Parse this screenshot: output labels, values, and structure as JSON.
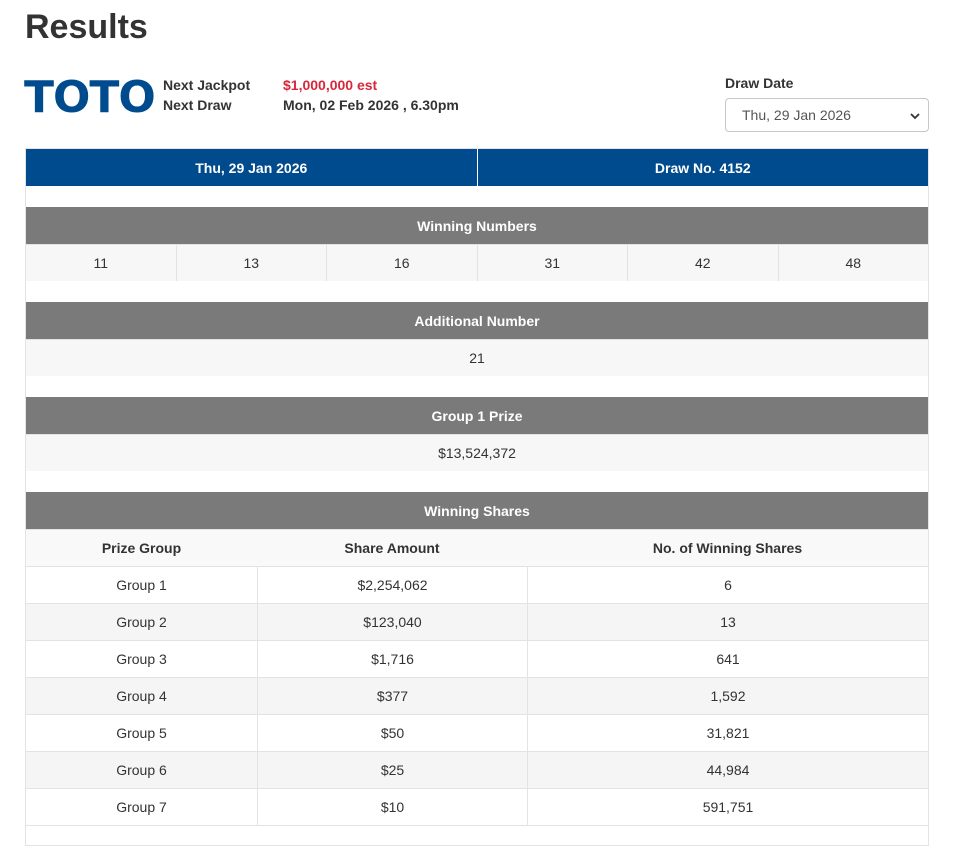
{
  "page": {
    "title": "Results"
  },
  "logo": {
    "text": "TOTO"
  },
  "info": {
    "next_jackpot_label": "Next Jackpot",
    "next_jackpot_value": "$1,000,000 est",
    "next_draw_label": "Next Draw",
    "next_draw_value": "Mon, 02 Feb 2026 , 6.30pm"
  },
  "draw_date": {
    "label": "Draw Date",
    "selected": "Thu, 29 Jan 2026"
  },
  "result": {
    "date": "Thu, 29 Jan 2026",
    "draw_no": "Draw No. 4152",
    "winning_numbers_label": "Winning Numbers",
    "winning_numbers": [
      "11",
      "13",
      "16",
      "31",
      "42",
      "48"
    ],
    "additional_label": "Additional Number",
    "additional_number": "21",
    "group1_label": "Group 1 Prize",
    "group1_prize": "$13,524,372"
  },
  "shares": {
    "title": "Winning Shares",
    "headers": [
      "Prize Group",
      "Share Amount",
      "No. of Winning Shares"
    ],
    "rows": [
      [
        "Group 1",
        "$2,254,062",
        "6"
      ],
      [
        "Group 2",
        "$123,040",
        "13"
      ],
      [
        "Group 3",
        "$1,716",
        "641"
      ],
      [
        "Group 4",
        "$377",
        "1,592"
      ],
      [
        "Group 5",
        "$50",
        "31,821"
      ],
      [
        "Group 6",
        "$25",
        "44,984"
      ],
      [
        "Group 7",
        "$10",
        "591,751"
      ]
    ]
  },
  "colors": {
    "brand_blue": "#004b8d",
    "header_grey": "#7a7a7a",
    "jackpot_red": "#d6283c"
  }
}
